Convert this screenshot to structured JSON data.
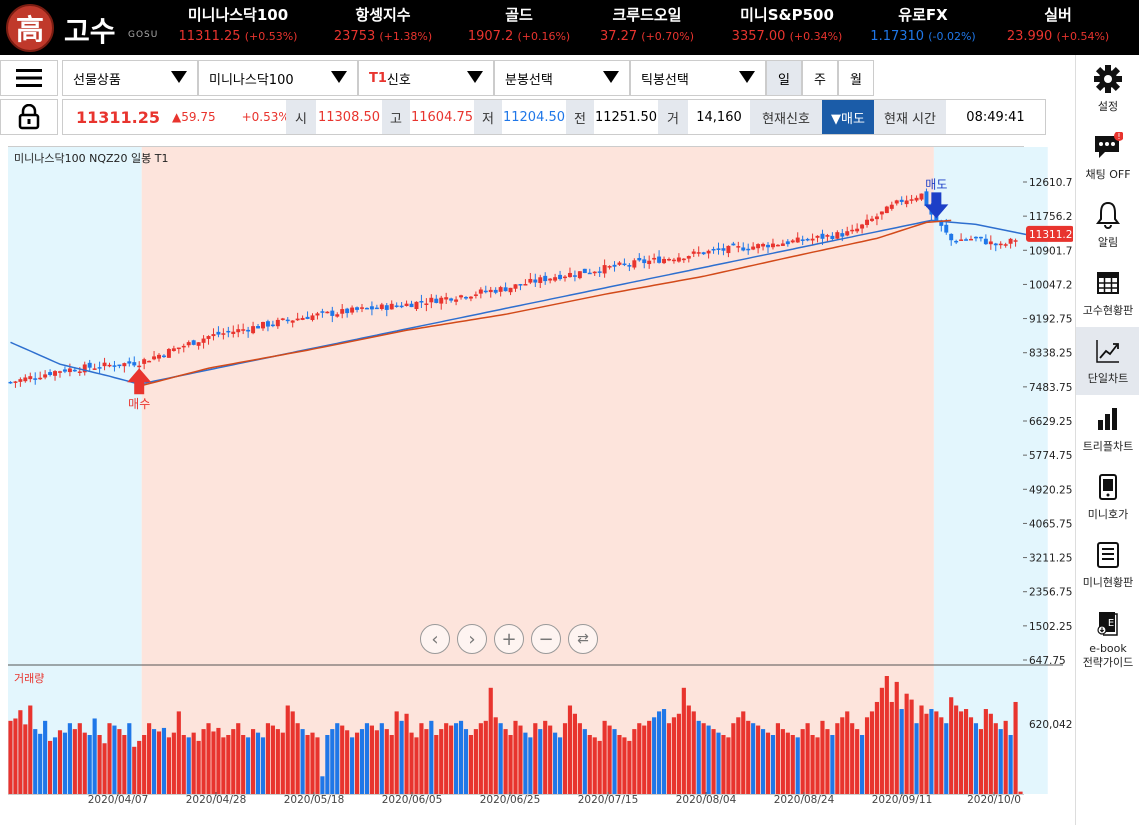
{
  "logo": {
    "mark": "高",
    "name": "고수",
    "sub": "GOSU"
  },
  "tickers": [
    {
      "name": "미니나스닥100",
      "value": "11311.25",
      "change": "(+0.53%)",
      "dir": "up"
    },
    {
      "name": "항셍지수",
      "value": "23753",
      "change": "(+1.38%)",
      "dir": "up"
    },
    {
      "name": "골드",
      "value": "1907.2",
      "change": "(+0.16%)",
      "dir": "up"
    },
    {
      "name": "크루드오일",
      "value": "37.27",
      "change": "(+0.70%)",
      "dir": "up"
    },
    {
      "name": "미니S&P500",
      "value": "3357.00",
      "change": "(+0.34%)",
      "dir": "up"
    },
    {
      "name": "유로FX",
      "value": "1.17310",
      "change": "(-0.02%)",
      "dir": "down"
    },
    {
      "name": "실버",
      "value": "23.990",
      "change": "(+0.54%)",
      "dir": "up"
    }
  ],
  "controls": {
    "product_type": "선물상품",
    "product": "미니나스닥100",
    "signal_prefix": "T1",
    "signal_suffix": "신호",
    "minute_select": "분봉선택",
    "tick_select": "틱봉선택",
    "periods": [
      "일",
      "주",
      "월"
    ],
    "selected_period": "일"
  },
  "quote": {
    "price": "11311.25",
    "change": "▲59.75",
    "change_pct": "+0.53%",
    "open_label": "시",
    "open": "11308.50",
    "high_label": "고",
    "high": "11604.75",
    "low_label": "저",
    "low": "11204.50",
    "prev_label": "전",
    "prev": "11251.50",
    "vol_label": "거",
    "volume": "14,160",
    "signal_label": "현재신호",
    "signal": "▼매도",
    "time_label": "현재 시간",
    "time": "08:49:41"
  },
  "chart_data": {
    "type": "candlestick",
    "title": "미니나스닥100 NQZ20 일봉 T1",
    "volume_title": "거래량",
    "y_ticks": [
      "12610.75",
      "11756.25",
      "10901.75",
      "10047.25",
      "9192.75",
      "8338.25",
      "7483.75",
      "6629.25",
      "5774.75",
      "4920.25",
      "4065.75",
      "3211.25",
      "2356.75",
      "1502.25",
      "647.75"
    ],
    "y_range": [
      647.75,
      12610.75
    ],
    "volume_tick": "620,042",
    "x_ticks": [
      "2020/04/07",
      "2020/04/28",
      "2020/05/18",
      "2020/06/05",
      "2020/06/25",
      "2020/07/15",
      "2020/08/04",
      "2020/08/24",
      "2020/09/11",
      "2020/10/0"
    ],
    "current_price_label": "11311.25",
    "buy_label": "매수",
    "sell_label": "매도",
    "zones": [
      {
        "signal": "sell",
        "from_index": 0,
        "to_index": 26,
        "color": "#e3f6fd"
      },
      {
        "signal": "buy",
        "from_index": 27,
        "to_index": 186,
        "color": "#fde4dc"
      },
      {
        "signal": "sell",
        "from_index": 187,
        "to_index": 209,
        "color": "#e3f6fd"
      }
    ],
    "close_path": [
      [
        0,
        7600
      ],
      [
        10,
        7900
      ],
      [
        26,
        8100
      ],
      [
        40,
        8750
      ],
      [
        60,
        9250
      ],
      [
        80,
        9550
      ],
      [
        100,
        9950
      ],
      [
        110,
        10250
      ],
      [
        125,
        10550
      ],
      [
        140,
        10850
      ],
      [
        150,
        11000
      ],
      [
        160,
        11150
      ],
      [
        170,
        11350
      ],
      [
        175,
        11750
      ],
      [
        180,
        12150
      ],
      [
        184,
        12300
      ],
      [
        186,
        11800
      ],
      [
        190,
        11150
      ],
      [
        195,
        11200
      ],
      [
        200,
        11000
      ],
      [
        205,
        11300
      ],
      [
        209,
        11311
      ]
    ],
    "ma_orange": [
      [
        26,
        7500
      ],
      [
        40,
        7950
      ],
      [
        60,
        8400
      ],
      [
        80,
        8900
      ],
      [
        100,
        9300
      ],
      [
        120,
        9800
      ],
      [
        140,
        10250
      ],
      [
        160,
        10800
      ],
      [
        175,
        11200
      ],
      [
        185,
        11600
      ],
      [
        190,
        11650
      ]
    ],
    "ma_blue": [
      [
        0,
        8600
      ],
      [
        10,
        8050
      ],
      [
        20,
        7750
      ],
      [
        26,
        7550
      ],
      [
        186,
        11650
      ],
      [
        195,
        11550
      ],
      [
        209,
        11200
      ]
    ],
    "volume": [
      0.62,
      0.64,
      0.71,
      0.59,
      0.75,
      0.55,
      0.51,
      0.62,
      0.45,
      0.48,
      0.54,
      0.52,
      0.6,
      0.55,
      0.6,
      0.52,
      0.5,
      0.64,
      0.5,
      0.43,
      0.6,
      0.58,
      0.55,
      0.5,
      0.6,
      0.4,
      0.45,
      0.5,
      0.6,
      0.55,
      0.53,
      0.56,
      0.48,
      0.52,
      0.7,
      0.5,
      0.48,
      0.52,
      0.45,
      0.55,
      0.6,
      0.53,
      0.56,
      0.48,
      0.5,
      0.55,
      0.6,
      0.5,
      0.48,
      0.55,
      0.52,
      0.48,
      0.6,
      0.58,
      0.55,
      0.52,
      0.75,
      0.7,
      0.6,
      0.55,
      0.5,
      0.52,
      0.48,
      0.15,
      0.5,
      0.55,
      0.6,
      0.58,
      0.54,
      0.48,
      0.52,
      0.55,
      0.6,
      0.58,
      0.54,
      0.6,
      0.55,
      0.5,
      0.7,
      0.62,
      0.68,
      0.52,
      0.48,
      0.6,
      0.55,
      0.62,
      0.5,
      0.55,
      0.6,
      0.58,
      0.6,
      0.62,
      0.55,
      0.5,
      0.55,
      0.6,
      0.62,
      0.9,
      0.65,
      0.6,
      0.55,
      0.5,
      0.62,
      0.58,
      0.52,
      0.48,
      0.6,
      0.55,
      0.62,
      0.58,
      0.52,
      0.48,
      0.6,
      0.75,
      0.68,
      0.6,
      0.55,
      0.5,
      0.48,
      0.45,
      0.62,
      0.58,
      0.55,
      0.5,
      0.48,
      0.45,
      0.55,
      0.6,
      0.58,
      0.62,
      0.65,
      0.7,
      0.72,
      0.6,
      0.65,
      0.68,
      0.9,
      0.75,
      0.7,
      0.62,
      0.6,
      0.58,
      0.55,
      0.52,
      0.5,
      0.48,
      0.6,
      0.65,
      0.7,
      0.62,
      0.6,
      0.58,
      0.55,
      0.52,
      0.5,
      0.6,
      0.55,
      0.52,
      0.5,
      0.48,
      0.55,
      0.6,
      0.5,
      0.48,
      0.62,
      0.55,
      0.5,
      0.6,
      0.65,
      0.7,
      0.6,
      0.55,
      0.5,
      0.65,
      0.7,
      0.78,
      0.9,
      1.0,
      0.78,
      0.95,
      0.72,
      0.85,
      0.8,
      0.6,
      0.75,
      0.68,
      0.72,
      0.7,
      0.65,
      0.6,
      0.82,
      0.75,
      0.7,
      0.72,
      0.65,
      0.6,
      0.55,
      0.72,
      0.68,
      0.6,
      0.55,
      0.62,
      0.5,
      0.78,
      0.02
    ]
  },
  "nav": [
    "prev",
    "next",
    "zoom-in",
    "zoom-out",
    "reset"
  ],
  "sidebar": [
    {
      "label": "설정",
      "icon": "gear-icon"
    },
    {
      "label": "채팅 OFF",
      "icon": "chat-icon"
    },
    {
      "label": "알림",
      "icon": "bell-icon"
    },
    {
      "label": "고수현황판",
      "icon": "grid-icon"
    },
    {
      "label": "단일차트",
      "icon": "line-chart-icon",
      "selected": true
    },
    {
      "label": "트리플차트",
      "icon": "bar-chart-icon"
    },
    {
      "label": "미니호가",
      "icon": "phone-icon"
    },
    {
      "label": "미니현황판",
      "icon": "list-icon"
    },
    {
      "label": "e-book\n전략가이드",
      "icon": "ebook-icon"
    }
  ],
  "colors": {
    "up": "#e8342e",
    "down": "#1f77e8",
    "ma": "#d24a1a",
    "ma2": "#2e6fcf"
  }
}
